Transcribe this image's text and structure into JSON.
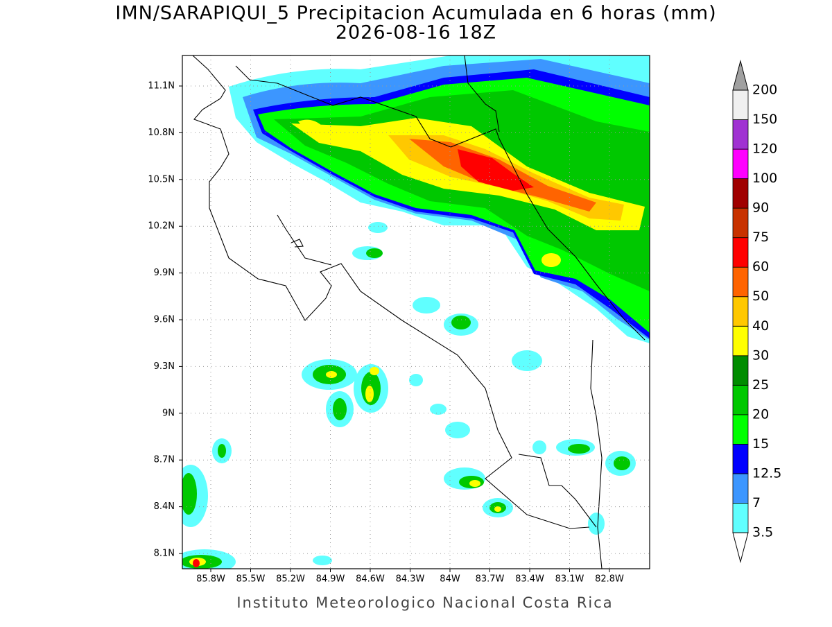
{
  "title": "IMN/SARAPIQUI_5 Precipitacion Acumulada en 6 horas (mm)",
  "subtitle": "2026-08-16 18Z",
  "lat_labels": [
    "11.1N",
    "10.8N",
    "10.5N",
    "10.2N",
    "9.9N",
    "9.6N",
    "9.3N",
    "9N",
    "8.7N",
    "8.4N",
    "8.1N"
  ],
  "lon_labels": [
    "85.8W",
    "85.5W",
    "85.2W",
    "84.9W",
    "84.6W",
    "84.3W",
    "84W",
    "83.7W",
    "83.4W",
    "83.1W",
    "82.8W"
  ],
  "colorbar": {
    "levels": [
      3.5,
      7,
      12.5,
      15,
      20,
      25,
      30,
      40,
      50,
      60,
      75,
      90,
      100,
      120,
      150,
      200
    ],
    "colors": [
      "#60ffff",
      "#3c96ff",
      "#0000ff",
      "#00ff00",
      "#00c800",
      "#008c00",
      "#ffff00",
      "#ffc800",
      "#ff6400",
      "#ff0000",
      "#c83200",
      "#a00000",
      "#ff00ff",
      "#a032d2",
      "#f0f0f0"
    ],
    "over_color": "#a0a0a0"
  },
  "footer": "Instituto Meteorologico Nacional Costa Rica"
}
